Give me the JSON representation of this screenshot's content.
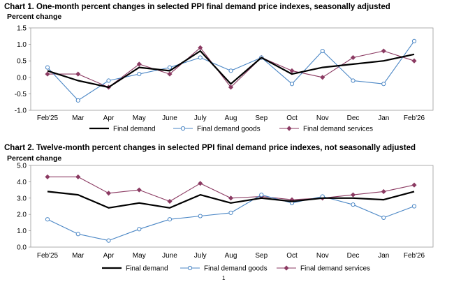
{
  "chart_data": [
    {
      "type": "line",
      "title": "Chart 1. One-month percent changes in selected PPI final demand price indexes, seasonally adjusted",
      "ylabel": "Percent change",
      "xlabel": "",
      "categories": [
        "Feb'25",
        "Mar",
        "Apr",
        "May",
        "June",
        "July",
        "Aug",
        "Sep",
        "Oct",
        "Nov",
        "Dec",
        "Jan",
        "Feb'26"
      ],
      "ylim": [
        -1.0,
        1.5
      ],
      "yticks": [
        "1.5",
        "1.0",
        "0.5",
        "0.0",
        "-0.5",
        "-1.0"
      ],
      "ytick_values": [
        1.5,
        1.0,
        0.5,
        0.0,
        -0.5,
        -1.0
      ],
      "series": [
        {
          "name": "Final demand",
          "color": "#000000",
          "marker": "none",
          "values": [
            0.2,
            -0.1,
            -0.3,
            0.3,
            0.2,
            0.8,
            -0.2,
            0.6,
            0.1,
            0.3,
            0.4,
            0.5,
            0.7
          ]
        },
        {
          "name": "Final demand goods",
          "color": "#4a86c5",
          "marker": "circle",
          "values": [
            0.3,
            -0.7,
            -0.1,
            0.1,
            0.3,
            0.6,
            0.2,
            0.6,
            -0.2,
            0.8,
            -0.1,
            -0.2,
            1.1
          ]
        },
        {
          "name": "Final demand services",
          "color": "#8b3a62",
          "marker": "diamond",
          "values": [
            0.1,
            0.1,
            -0.3,
            0.4,
            0.1,
            0.9,
            -0.3,
            0.6,
            0.2,
            0.0,
            0.6,
            0.8,
            0.5
          ]
        }
      ]
    },
    {
      "type": "line",
      "title": "Chart 2. Twelve-month percent changes in selected PPI final demand price indexes, not seasonally adjusted",
      "ylabel": "Percent change",
      "xlabel": "",
      "categories": [
        "Feb'25",
        "Mar",
        "Apr",
        "May",
        "June",
        "July",
        "Aug",
        "Sep",
        "Oct",
        "Nov",
        "Dec",
        "Jan",
        "Feb'26"
      ],
      "ylim": [
        0.0,
        5.0
      ],
      "yticks": [
        "5.0",
        "4.0",
        "3.0",
        "2.0",
        "1.0",
        "0.0"
      ],
      "ytick_values": [
        5.0,
        4.0,
        3.0,
        2.0,
        1.0,
        0.0
      ],
      "series": [
        {
          "name": "Final demand",
          "color": "#000000",
          "marker": "none",
          "values": [
            3.4,
            3.2,
            2.4,
            2.7,
            2.4,
            3.2,
            2.7,
            3.0,
            2.8,
            3.0,
            3.0,
            2.9,
            3.4
          ]
        },
        {
          "name": "Final demand goods",
          "color": "#4a86c5",
          "marker": "circle",
          "values": [
            1.7,
            0.8,
            0.4,
            1.1,
            1.7,
            1.9,
            2.1,
            3.2,
            2.7,
            3.1,
            2.6,
            1.8,
            2.5
          ]
        },
        {
          "name": "Final demand services",
          "color": "#8b3a62",
          "marker": "diamond",
          "values": [
            4.3,
            4.3,
            3.3,
            3.5,
            2.8,
            3.9,
            3.0,
            3.1,
            2.9,
            3.0,
            3.2,
            3.4,
            3.8
          ]
        }
      ]
    }
  ],
  "page_number": "1"
}
